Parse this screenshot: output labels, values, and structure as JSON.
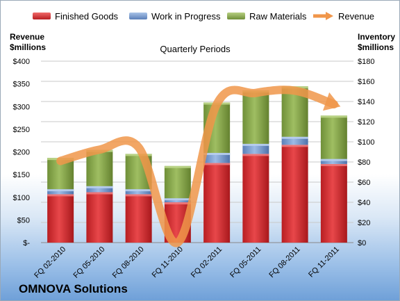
{
  "legend": {
    "finished": "Finished Goods",
    "wip": "Work in Progress",
    "raw": "Raw Materials",
    "revenue": "Revenue"
  },
  "axes": {
    "left_title_line1": "Revenue",
    "left_title_line2": "$millions",
    "right_title_line1": "Inventory",
    "right_title_line2": "$millions",
    "plot_title": "Quarterly Periods"
  },
  "company": "OMNOVA Solutions",
  "colors": {
    "finished": "#d42a2e",
    "wip": "#6f93c8",
    "raw": "#8aaa4e",
    "revenue": "#f0964a"
  },
  "chart_data": {
    "type": "bar",
    "stacked": true,
    "title": "Quarterly Periods",
    "categories": [
      "FQ 02-2010",
      "FQ 05-2010",
      "FQ 08-2010",
      "FQ 11-2010",
      "FQ 02-2011",
      "FQ 05-2011",
      "FQ 08-2011",
      "FQ 11-2011"
    ],
    "series": [
      {
        "name": "Finished Goods",
        "axis": "right",
        "values": [
          48,
          50,
          48,
          40,
          79,
          88,
          97,
          78
        ]
      },
      {
        "name": "Work in Progress",
        "axis": "right",
        "values": [
          5,
          6,
          5,
          4,
          10,
          10,
          8,
          5
        ]
      },
      {
        "name": "Raw Materials",
        "axis": "right",
        "values": [
          31,
          36,
          35,
          32,
          50,
          53,
          50,
          43
        ]
      },
      {
        "name": "Revenue",
        "axis": "left",
        "type": "line",
        "values": [
          180,
          205,
          210,
          0,
          305,
          330,
          335,
          305
        ]
      }
    ],
    "left_axis": {
      "label": "Revenue $millions",
      "ylim": [
        0,
        400
      ],
      "ticks": [
        "$-",
        "$50",
        "$100",
        "$150",
        "$200",
        "$250",
        "$300",
        "$350",
        "$400"
      ]
    },
    "right_axis": {
      "label": "Inventory $millions",
      "ylim": [
        0,
        180
      ],
      "ticks": [
        "$0",
        "$20",
        "$40",
        "$60",
        "$80",
        "$100",
        "$120",
        "$140",
        "$160",
        "$180"
      ]
    },
    "legend_position": "top"
  }
}
